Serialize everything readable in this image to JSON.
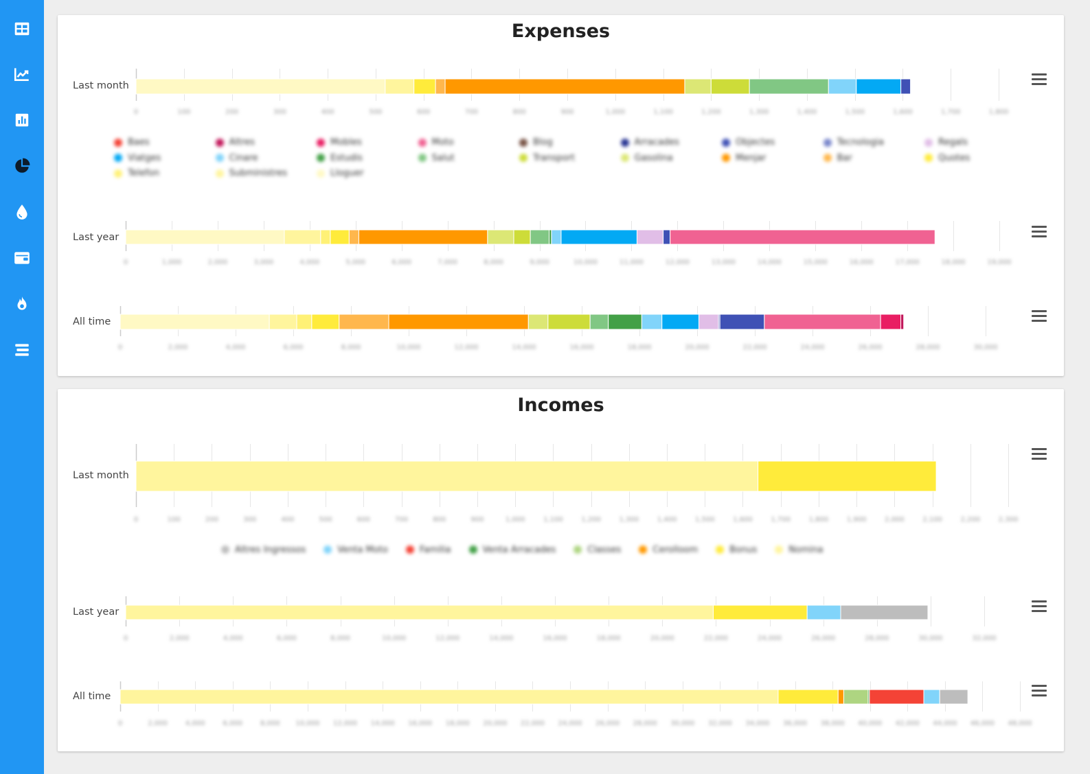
{
  "sidebar": {
    "items": [
      {
        "icon": "table-grid-icon",
        "color": "#ffffff"
      },
      {
        "icon": "line-chart-icon",
        "color": "#ffffff"
      },
      {
        "icon": "bar-chart-icon",
        "color": "#ffffff"
      },
      {
        "icon": "pie-chart-icon",
        "color": "#0d1b2a"
      },
      {
        "icon": "water-drop-icon",
        "color": "#ffffff"
      },
      {
        "icon": "wallet-icon",
        "color": "#ffffff"
      },
      {
        "icon": "fire-icon",
        "color": "#ffffff"
      },
      {
        "icon": "stacked-bars-icon",
        "color": "#ffffff"
      }
    ]
  },
  "expenses": {
    "title": "Expenses",
    "rows": [
      {
        "label": "Last month"
      },
      {
        "label": "Last year"
      },
      {
        "label": "All time"
      }
    ],
    "legend": [
      {
        "name": "Baes",
        "color": "#f44336"
      },
      {
        "name": "Altres",
        "color": "#c2185b"
      },
      {
        "name": "Mobles",
        "color": "#e91e63"
      },
      {
        "name": "Moto",
        "color": "#f06292"
      },
      {
        "name": "Blog",
        "color": "#795548"
      },
      {
        "name": "Arracades",
        "color": "#283593"
      },
      {
        "name": "Objectes",
        "color": "#3f51b5"
      },
      {
        "name": "Tecnologia",
        "color": "#7986cb"
      },
      {
        "name": "Regals",
        "color": "#e1bee7"
      },
      {
        "name": "Viatges",
        "color": "#03a9f4"
      },
      {
        "name": "Cinare",
        "color": "#81d4fa"
      },
      {
        "name": "Estudis",
        "color": "#43a047"
      },
      {
        "name": "Salut",
        "color": "#81c784"
      },
      {
        "name": "Transport",
        "color": "#cddc39"
      },
      {
        "name": "Gasolina",
        "color": "#dce775"
      },
      {
        "name": "Menjar",
        "color": "#ff9800"
      },
      {
        "name": "Bar",
        "color": "#ffb74d"
      },
      {
        "name": "Quotes",
        "color": "#ffeb3b"
      },
      {
        "name": "Telefon",
        "color": "#fff176"
      },
      {
        "name": "Subministres",
        "color": "#fff59d"
      },
      {
        "name": "Lloguer",
        "color": "#fff9c4"
      }
    ]
  },
  "incomes": {
    "title": "Incomes",
    "rows": [
      {
        "label": "Last month"
      },
      {
        "label": "Last year"
      },
      {
        "label": "All time"
      }
    ],
    "legend": [
      {
        "name": "Altres Ingressos",
        "color": "#bdbdbd"
      },
      {
        "name": "Venta Moto",
        "color": "#81d4fa"
      },
      {
        "name": "Familia",
        "color": "#f44336"
      },
      {
        "name": "Venta Arracades",
        "color": "#43a047"
      },
      {
        "name": "Classes",
        "color": "#aed581"
      },
      {
        "name": "Cerolloom",
        "color": "#ff9800"
      },
      {
        "name": "Bonus",
        "color": "#ffeb3b"
      },
      {
        "name": "Nomina",
        "color": "#fff59d"
      }
    ]
  },
  "chart_data": [
    {
      "type": "bar",
      "stacked": true,
      "orientation": "horizontal",
      "title": "Expenses",
      "categories": [
        "Last month"
      ],
      "xlim": [
        0,
        1800
      ],
      "ticks": [
        0,
        100,
        200,
        300,
        400,
        500,
        600,
        700,
        800,
        900,
        1000,
        1100,
        1200,
        1300,
        1400,
        1500,
        1600,
        1700,
        1800
      ],
      "grid": true,
      "legend_position": "bottom",
      "series": [
        {
          "name": "Lloguer",
          "color": "#fff9c4",
          "value": 520
        },
        {
          "name": "Subministres",
          "color": "#fff59d",
          "value": 60
        },
        {
          "name": "Quotes",
          "color": "#ffeb3b",
          "value": 45
        },
        {
          "name": "Bar",
          "color": "#ffb74d",
          "value": 20
        },
        {
          "name": "Menjar",
          "color": "#ff9800",
          "value": 500
        },
        {
          "name": "Gasolina",
          "color": "#dce775",
          "value": 55
        },
        {
          "name": "Transport",
          "color": "#cddc39",
          "value": 80
        },
        {
          "name": "Salut",
          "color": "#81c784",
          "value": 165
        },
        {
          "name": "Cinare",
          "color": "#81d4fa",
          "value": 58
        },
        {
          "name": "Viatges",
          "color": "#03a9f4",
          "value": 93
        },
        {
          "name": "Objectes",
          "color": "#3f51b5",
          "value": 20
        }
      ]
    },
    {
      "type": "bar",
      "stacked": true,
      "orientation": "horizontal",
      "title": "Expenses",
      "categories": [
        "Last year"
      ],
      "xlim": [
        0,
        19000
      ],
      "ticks": [
        0,
        1000,
        2000,
        3000,
        4000,
        5000,
        6000,
        7000,
        8000,
        9000,
        10000,
        11000,
        12000,
        13000,
        14000,
        15000,
        16000,
        17000,
        18000,
        19000
      ],
      "grid": true,
      "series": [
        {
          "name": "Lloguer",
          "color": "#fff9c4",
          "value": 3450
        },
        {
          "name": "Subministres",
          "color": "#fff59d",
          "value": 790
        },
        {
          "name": "Telefon",
          "color": "#fff176",
          "value": 210
        },
        {
          "name": "Quotes",
          "color": "#ffeb3b",
          "value": 410
        },
        {
          "name": "Bar",
          "color": "#ffb74d",
          "value": 210
        },
        {
          "name": "Menjar",
          "color": "#ff9800",
          "value": 2800
        },
        {
          "name": "Gasolina",
          "color": "#dce775",
          "value": 570
        },
        {
          "name": "Transport",
          "color": "#cddc39",
          "value": 360
        },
        {
          "name": "Salut",
          "color": "#81c784",
          "value": 410
        },
        {
          "name": "Estudis",
          "color": "#43a047",
          "value": 50
        },
        {
          "name": "Cinare",
          "color": "#81d4fa",
          "value": 210
        },
        {
          "name": "Viatges",
          "color": "#03a9f4",
          "value": 1650
        },
        {
          "name": "Regals",
          "color": "#e1bee7",
          "value": 570
        },
        {
          "name": "Objectes",
          "color": "#3f51b5",
          "value": 150
        },
        {
          "name": "Moto",
          "color": "#f06292",
          "value": 5760
        }
      ]
    },
    {
      "type": "bar",
      "stacked": true,
      "orientation": "horizontal",
      "title": "Expenses",
      "categories": [
        "All time"
      ],
      "xlim": [
        0,
        30000
      ],
      "ticks": [
        0,
        2000,
        4000,
        6000,
        8000,
        10000,
        12000,
        14000,
        16000,
        18000,
        20000,
        22000,
        24000,
        26000,
        28000,
        30000
      ],
      "grid": true,
      "series": [
        {
          "name": "Lloguer",
          "color": "#fff9c4",
          "value": 5170
        },
        {
          "name": "Subministres",
          "color": "#fff59d",
          "value": 950
        },
        {
          "name": "Telefon",
          "color": "#fff176",
          "value": 520
        },
        {
          "name": "Quotes",
          "color": "#ffeb3b",
          "value": 950
        },
        {
          "name": "Bar",
          "color": "#ffb74d",
          "value": 1720
        },
        {
          "name": "Menjar",
          "color": "#ff9800",
          "value": 4840
        },
        {
          "name": "Gasolina",
          "color": "#dce775",
          "value": 680
        },
        {
          "name": "Transport",
          "color": "#cddc39",
          "value": 1460
        },
        {
          "name": "Salut",
          "color": "#81c784",
          "value": 630
        },
        {
          "name": "Estudis",
          "color": "#43a047",
          "value": 1160
        },
        {
          "name": "Cinare",
          "color": "#81d4fa",
          "value": 700
        },
        {
          "name": "Viatges",
          "color": "#03a9f4",
          "value": 1280
        },
        {
          "name": "Regals",
          "color": "#e1bee7",
          "value": 680
        },
        {
          "name": "Tecnologia",
          "color": "#7986cb",
          "value": 50
        },
        {
          "name": "Objectes",
          "color": "#3f51b5",
          "value": 1540
        },
        {
          "name": "Moto",
          "color": "#f06292",
          "value": 4030
        },
        {
          "name": "Mobles",
          "color": "#e91e63",
          "value": 700
        },
        {
          "name": "Altres",
          "color": "#c2185b",
          "value": 100
        }
      ]
    },
    {
      "type": "bar",
      "stacked": true,
      "orientation": "horizontal",
      "title": "Incomes",
      "categories": [
        "Last month"
      ],
      "xlim": [
        0,
        2300
      ],
      "ticks": [
        0,
        100,
        200,
        300,
        400,
        500,
        600,
        700,
        800,
        900,
        1000,
        1100,
        1200,
        1300,
        1400,
        1500,
        1600,
        1700,
        1800,
        1900,
        2000,
        2100,
        2200,
        2300
      ],
      "grid": true,
      "legend_position": "bottom",
      "series": [
        {
          "name": "Nomina",
          "color": "#fff59d",
          "value": 1640
        },
        {
          "name": "Bonus",
          "color": "#ffeb3b",
          "value": 470
        }
      ]
    },
    {
      "type": "bar",
      "stacked": true,
      "orientation": "horizontal",
      "title": "Incomes",
      "categories": [
        "Last year"
      ],
      "xlim": [
        0,
        32000
      ],
      "ticks": [
        0,
        2000,
        4000,
        6000,
        8000,
        10000,
        12000,
        14000,
        16000,
        18000,
        20000,
        22000,
        24000,
        26000,
        28000,
        30000,
        32000
      ],
      "grid": true,
      "series": [
        {
          "name": "Nomina",
          "color": "#fff59d",
          "value": 21900
        },
        {
          "name": "Bonus",
          "color": "#ffeb3b",
          "value": 3500
        },
        {
          "name": "Venta Moto",
          "color": "#81d4fa",
          "value": 1250
        },
        {
          "name": "Altres Ingressos",
          "color": "#bdbdbd",
          "value": 3250
        }
      ]
    },
    {
      "type": "bar",
      "stacked": true,
      "orientation": "horizontal",
      "title": "Incomes",
      "categories": [
        "All time"
      ],
      "xlim": [
        0,
        48000
      ],
      "ticks": [
        0,
        2000,
        4000,
        6000,
        8000,
        10000,
        12000,
        14000,
        16000,
        18000,
        20000,
        22000,
        24000,
        26000,
        28000,
        30000,
        32000,
        34000,
        36000,
        38000,
        40000,
        42000,
        44000,
        46000,
        48000
      ],
      "grid": true,
      "series": [
        {
          "name": "Nomina",
          "color": "#fff59d",
          "value": 35100
        },
        {
          "name": "Bonus",
          "color": "#ffeb3b",
          "value": 3200
        },
        {
          "name": "Cerolloom",
          "color": "#ff9800",
          "value": 300
        },
        {
          "name": "Classes",
          "color": "#aed581",
          "value": 1300
        },
        {
          "name": "Venta Arracades",
          "color": "#43a047",
          "value": 70
        },
        {
          "name": "Familia",
          "color": "#f44336",
          "value": 2900
        },
        {
          "name": "Venta Moto",
          "color": "#81d4fa",
          "value": 850
        },
        {
          "name": "Altres Ingressos",
          "color": "#bdbdbd",
          "value": 1500
        }
      ]
    }
  ]
}
